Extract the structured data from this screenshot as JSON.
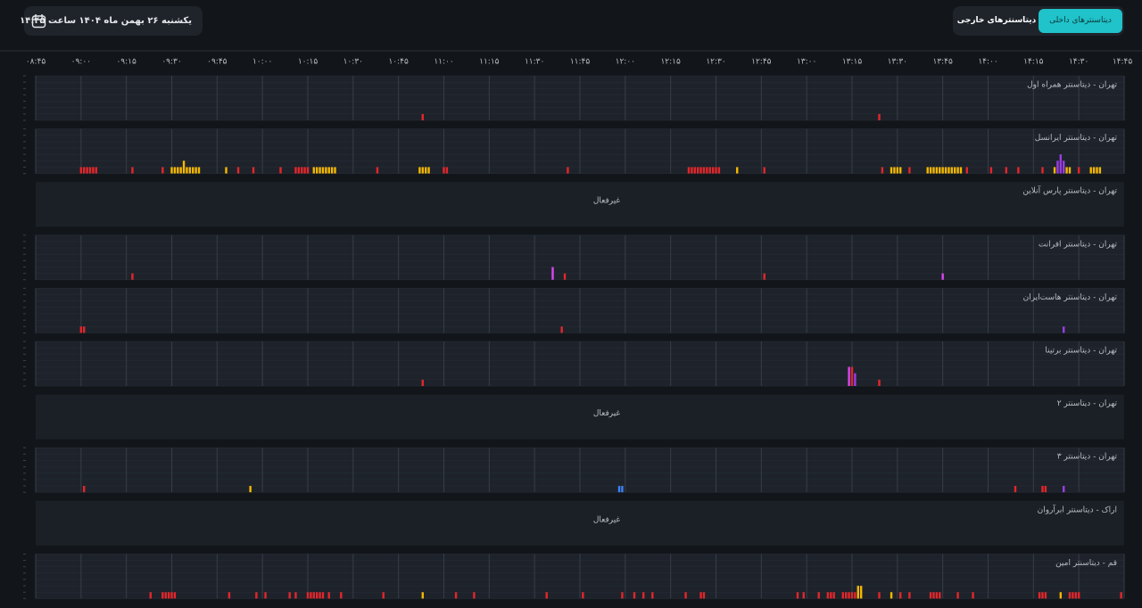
{
  "header": {
    "date": "یکشنبه ۲۶ بهمن ماه ۱۴۰۴ ساعت ۱۴:۴۵",
    "tabs": [
      "دیتاسنترهای داخلی",
      "دیتاسنترهای خارجی"
    ]
  },
  "chart_data": {
    "type": "timeline",
    "xlim": [
      525,
      885
    ],
    "xticks": [
      {
        "value": 525,
        "label": "۰۸:۴۵"
      },
      {
        "value": 540,
        "label": "۰۹:۰۰"
      },
      {
        "value": 555,
        "label": "۰۹:۱۵"
      },
      {
        "value": 570,
        "label": "۰۹:۳۰"
      },
      {
        "value": 585,
        "label": "۰۹:۴۵"
      },
      {
        "value": 600,
        "label": "۱۰:۰۰"
      },
      {
        "value": 615,
        "label": "۱۰:۱۵"
      },
      {
        "value": 630,
        "label": "۱۰:۳۰"
      },
      {
        "value": 645,
        "label": "۱۰:۴۵"
      },
      {
        "value": 660,
        "label": "۱۱:۰۰"
      },
      {
        "value": 675,
        "label": "۱۱:۱۵"
      },
      {
        "value": 690,
        "label": "۱۱:۳۰"
      },
      {
        "value": 705,
        "label": "۱۱:۴۵"
      },
      {
        "value": 720,
        "label": "۱۲:۰۰"
      },
      {
        "value": 735,
        "label": "۱۲:۱۵"
      },
      {
        "value": 750,
        "label": "۱۲:۳۰"
      },
      {
        "value": 765,
        "label": "۱۲:۴۵"
      },
      {
        "value": 780,
        "label": "۱۳:۰۰"
      },
      {
        "value": 795,
        "label": "۱۳:۱۵"
      },
      {
        "value": 810,
        "label": "۱۳:۳۰"
      },
      {
        "value": 825,
        "label": "۱۳:۴۵"
      },
      {
        "value": 840,
        "label": "۱۴:۰۰"
      },
      {
        "value": 855,
        "label": "۱۴:۱۵"
      },
      {
        "value": 870,
        "label": "۱۴:۳۰"
      },
      {
        "value": 885,
        "label": "۱۴:۴۵"
      }
    ],
    "ylim": [
      0,
      7
    ],
    "yticks": [
      0,
      1,
      2,
      3,
      4,
      5,
      6,
      7
    ],
    "grid": true,
    "rows": [
      {
        "name": "تهران - دیتاسنتر همراه اول",
        "series": [
          {
            "color": "#e3262b",
            "t": [
              653,
              804
            ],
            "v": [
              1,
              1
            ]
          }
        ]
      },
      {
        "name": "تهران - دیتاسنتر ایرانسل",
        "series": [
          {
            "color": "#e3262b",
            "t": [
              540,
              541,
              542,
              543,
              544,
              545,
              557,
              567,
              592,
              597,
              606,
              611,
              612,
              613,
              614,
              615,
              638,
              660,
              661,
              701,
              741,
              742,
              743,
              744,
              745,
              746,
              747,
              748,
              749,
              750,
              751,
              766,
              805,
              814,
              833,
              841,
              846,
              850,
              858,
              870
            ],
            "v": [
              1,
              1,
              1,
              1,
              1,
              1,
              1,
              1,
              1,
              1,
              1,
              1,
              1,
              1,
              1,
              1,
              1,
              1,
              1,
              1,
              1,
              1,
              1,
              1,
              1,
              1,
              1,
              1,
              1,
              1,
              1,
              1,
              1,
              1,
              1,
              1,
              1,
              1,
              1,
              1
            ]
          },
          {
            "color": "#f5b800",
            "t": [
              570,
              571,
              572,
              573,
              574,
              575,
              576,
              577,
              578,
              579,
              588,
              617,
              618,
              619,
              620,
              621,
              622,
              623,
              624,
              652,
              653,
              654,
              655,
              757,
              808,
              809,
              810,
              811,
              820,
              821,
              822,
              823,
              824,
              825,
              826,
              827,
              828,
              829,
              830,
              831,
              862,
              866,
              867,
              874,
              875,
              876,
              877
            ],
            "v": [
              1,
              1,
              1,
              1,
              2,
              1,
              1,
              1,
              1,
              1,
              1,
              1,
              1,
              1,
              1,
              1,
              1,
              1,
              1,
              1,
              1,
              1,
              1,
              1,
              1,
              1,
              1,
              1,
              1,
              1,
              1,
              1,
              1,
              1,
              1,
              1,
              1,
              1,
              1,
              1,
              1,
              1,
              1,
              1,
              1,
              1,
              1
            ]
          },
          {
            "color": "#9b3de6",
            "t": [
              863,
              864,
              865
            ],
            "v": [
              2,
              3,
              2
            ]
          }
        ]
      },
      {
        "name": "تهران - دیتاسنتر پارس آنلاین",
        "status": "غیرفعال"
      },
      {
        "name": "تهران - دیتاسنتر افرانت",
        "series": [
          {
            "color": "#e3262b",
            "t": [
              557,
              700,
              766
            ],
            "v": [
              1,
              1,
              1
            ]
          },
          {
            "color": "#d946ef",
            "t": [
              696,
              825
            ],
            "v": [
              2,
              1
            ]
          }
        ]
      },
      {
        "name": "تهران - دیتاسنتر هاست‌ایران",
        "series": [
          {
            "color": "#e3262b",
            "t": [
              540,
              541,
              699
            ],
            "v": [
              1,
              1,
              1
            ]
          },
          {
            "color": "#9b3de6",
            "t": [
              865
            ],
            "v": [
              1
            ]
          }
        ]
      },
      {
        "name": "تهران - دیتاسنتر برتینا",
        "series": [
          {
            "color": "#e3262b",
            "t": [
              653,
              795,
              804
            ],
            "v": [
              1,
              3,
              1
            ]
          },
          {
            "color": "#d946ef",
            "t": [
              794
            ],
            "v": [
              3
            ]
          },
          {
            "color": "#9b3de6",
            "t": [
              796
            ],
            "v": [
              2
            ]
          }
        ]
      },
      {
        "name": "تهران - دیتاسنتر ۲",
        "status": "غیرفعال"
      },
      {
        "name": "تهران - دیتاسنتر ۳",
        "series": [
          {
            "color": "#e3262b",
            "t": [
              541,
              849,
              858,
              859
            ],
            "v": [
              1,
              1,
              1,
              1
            ]
          },
          {
            "color": "#f5b800",
            "t": [
              596
            ],
            "v": [
              1
            ]
          },
          {
            "color": "#3b82f6",
            "t": [
              718,
              719
            ],
            "v": [
              1,
              1
            ]
          },
          {
            "color": "#9b3de6",
            "t": [
              865
            ],
            "v": [
              1
            ]
          }
        ]
      },
      {
        "name": "اراک - دیتاسنتر ابرآروان",
        "status": "غیرفعال"
      },
      {
        "name": "قم - دیتاسنتر امین",
        "series": [
          {
            "color": "#e3262b",
            "t": [
              563,
              567,
              568,
              569,
              570,
              571,
              589,
              598,
              601,
              609,
              611,
              615,
              616,
              617,
              618,
              619,
              620,
              622,
              626,
              640,
              664,
              670,
              694,
              706,
              719,
              723,
              726,
              729,
              740,
              745,
              746,
              777,
              779,
              784,
              787,
              788,
              789,
              792,
              793,
              794,
              795,
              796,
              804,
              811,
              814,
              821,
              822,
              823,
              824,
              830,
              835,
              857,
              858,
              859,
              867,
              868,
              869,
              870,
              884
            ],
            "v": [
              1,
              1,
              1,
              1,
              1,
              1,
              1,
              1,
              1,
              1,
              1,
              1,
              1,
              1,
              1,
              1,
              1,
              1,
              1,
              1,
              1,
              1,
              1,
              1,
              1,
              1,
              1,
              1,
              1,
              1,
              1,
              1,
              1,
              1,
              1,
              1,
              1,
              1,
              1,
              1,
              1,
              1,
              1,
              1,
              1,
              1,
              1,
              1,
              1,
              1,
              1,
              1,
              1,
              1,
              1,
              1,
              1,
              1,
              1
            ]
          },
          {
            "color": "#f5b800",
            "t": [
              653,
              797,
              798,
              808,
              864
            ],
            "v": [
              1,
              2,
              2,
              1,
              1
            ]
          }
        ]
      }
    ]
  }
}
